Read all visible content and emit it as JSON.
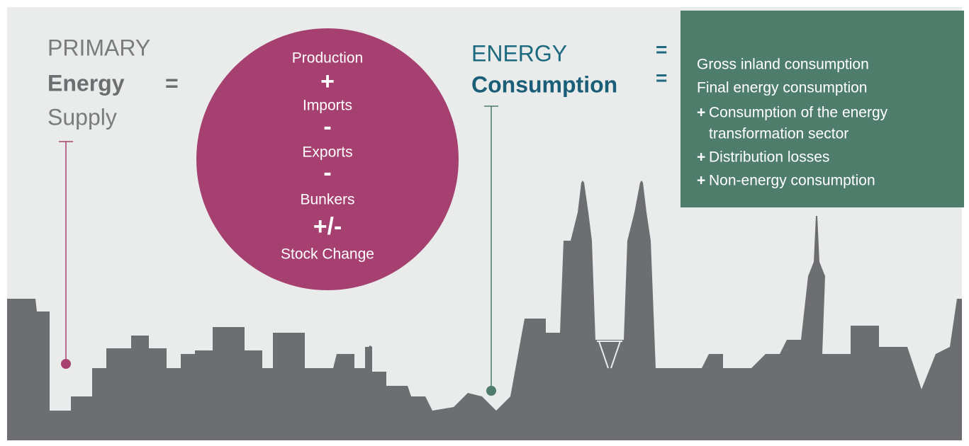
{
  "primary_supply": {
    "line1": "PRIMARY",
    "line2": "Energy",
    "line3": "Supply",
    "equals": "="
  },
  "supply_formula": {
    "items": [
      "Production",
      "+",
      "Imports",
      "-",
      "Exports",
      "-",
      "Bunkers",
      "+/-",
      "Stock Change"
    ]
  },
  "energy_consumption": {
    "line1": "ENERGY",
    "line2": "Consumption",
    "equals": [
      "=",
      "="
    ]
  },
  "consumption_box": {
    "lines": [
      {
        "text": "Gross inland consumption"
      },
      {
        "text": "Final energy consumption"
      },
      {
        "operator": "+",
        "text": "Consumption of the energy"
      },
      {
        "text": "transformation sector"
      },
      {
        "operator": "+",
        "text": "Distribution losses"
      },
      {
        "operator": "+",
        "text": "Non-energy consumption"
      }
    ]
  }
}
